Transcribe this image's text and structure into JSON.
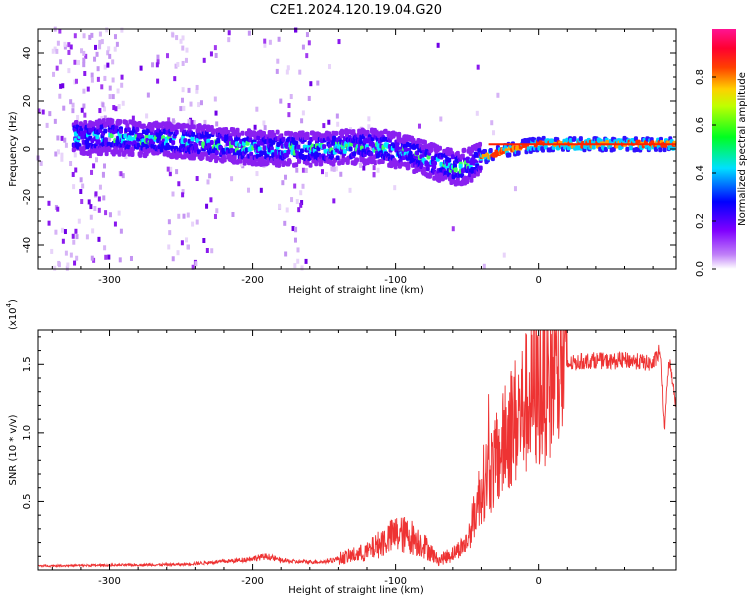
{
  "title": "C2E1.2024.120.19.04.G20",
  "chart_data": [
    {
      "type": "heatmap",
      "xlabel": "Height of straight line (km)",
      "ylabel": "Frequency (Hz)",
      "xlim": [
        -350,
        96
      ],
      "ylim": [
        -50,
        50
      ],
      "xticks": [
        -300,
        -200,
        -100,
        0
      ],
      "yticks": [
        -40,
        -20,
        0,
        20,
        40
      ],
      "colorbar": {
        "label": "Normalized spectral amplitude",
        "range": [
          0,
          1
        ],
        "ticks": [
          "0.0",
          "0.2",
          "0.4",
          "0.6",
          "0.8"
        ],
        "colors": [
          "#ffffff",
          "#a020f0",
          "#0000ff",
          "#00e5ff",
          "#00ff00",
          "#ffff00",
          "#ff8000",
          "#ff0000",
          "#ff1493"
        ]
      },
      "ridge": {
        "x": [
          -320,
          -300,
          -270,
          -240,
          -210,
          -180,
          -150,
          -130,
          -110,
          -90,
          -70,
          -55,
          -45,
          -38,
          -30,
          -20,
          -10,
          0,
          20,
          50,
          80,
          96
        ],
        "y": [
          5,
          5,
          4,
          3,
          1,
          0,
          0,
          1,
          1,
          -2,
          -6,
          -8,
          -6,
          -3,
          -2,
          0,
          1,
          2,
          2,
          2,
          2,
          2
        ]
      }
    },
    {
      "type": "line",
      "xlabel": "Height of straight line (km)",
      "ylabel": "SNR (10 * v/v)",
      "yscale_label": "(x10",
      "yscale_exp": "4",
      "xlim": [
        -350,
        96
      ],
      "ylim": [
        0,
        17500
      ],
      "xticks": [
        -300,
        -200,
        -100,
        0
      ],
      "yticks": [
        5000,
        10000,
        15000
      ],
      "ytick_labels": [
        "0.5",
        "1.0",
        "1.5"
      ],
      "color": "#ee3333",
      "series": [
        {
          "x": [
            -350,
            -300,
            -250,
            -210,
            -190,
            -180,
            -170,
            -150,
            -120,
            -110,
            -100,
            -90,
            -80,
            -70,
            -60,
            -50,
            -45,
            -40,
            -35,
            -30,
            -25,
            -20,
            -15,
            -10,
            -5,
            0,
            5,
            10,
            15,
            20,
            30,
            40,
            50,
            60,
            70,
            80,
            85,
            88,
            90,
            92,
            96
          ],
          "values": [
            300,
            350,
            400,
            700,
            1000,
            700,
            600,
            600,
            1300,
            2000,
            2600,
            2500,
            1800,
            700,
            1200,
            2000,
            4000,
            6000,
            7200,
            7600,
            9000,
            10500,
            11000,
            12000,
            12500,
            13000,
            13800,
            14200,
            14800,
            15000,
            15200,
            15300,
            15200,
            15300,
            15200,
            15000,
            16000,
            10000,
            14500,
            15000,
            12000
          ]
        }
      ]
    }
  ]
}
